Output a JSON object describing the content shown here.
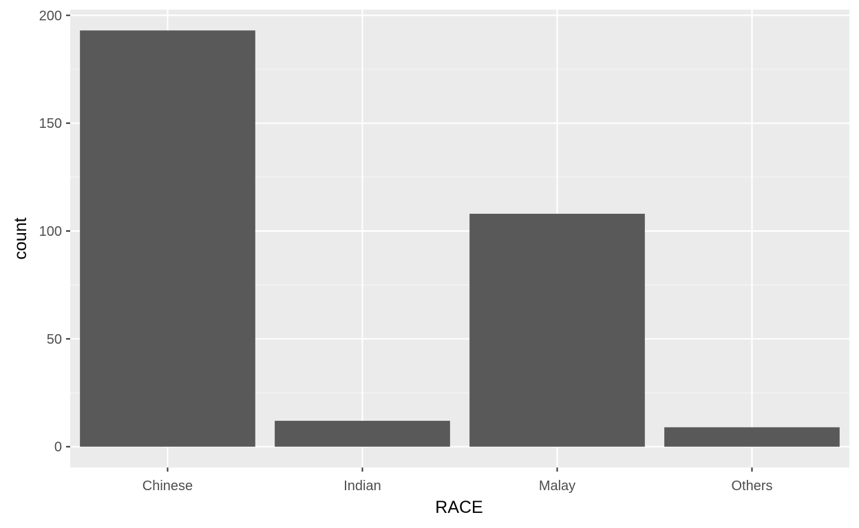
{
  "chart_data": {
    "type": "bar",
    "categories": [
      "Chinese",
      "Indian",
      "Malay",
      "Others"
    ],
    "values": [
      193,
      12,
      108,
      9
    ],
    "title": "",
    "xlabel": "RACE",
    "ylabel": "count",
    "ylim": [
      -9.65,
      202.65
    ],
    "yticks": [
      0,
      50,
      100,
      150,
      200
    ],
    "grid": true,
    "legend": "none",
    "colors": {
      "bar": "#595959",
      "panel": "#ebebeb",
      "grid_major": "#ffffff",
      "grid_minor": "#f5f5f5",
      "tick_label": "#4d4d4d",
      "axis_title": "#000000"
    }
  }
}
